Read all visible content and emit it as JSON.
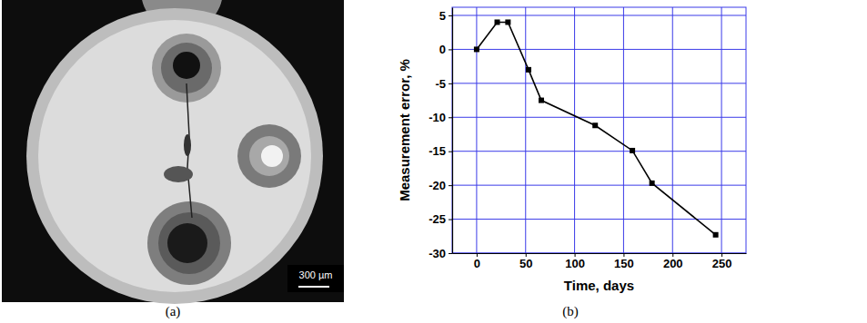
{
  "chart_data": {
    "type": "line",
    "x_label": "Time, days",
    "y_label": "Measurement error, %",
    "x": [
      0,
      21,
      32,
      53,
      66,
      121,
      159,
      179,
      244
    ],
    "values": [
      0,
      4,
      4,
      -3,
      -7.5,
      -11.2,
      -14.9,
      -19.7,
      -27.3
    ],
    "color": "#000000",
    "marker": "square",
    "line_style": "solid",
    "xlim": [
      -25,
      275
    ],
    "xticks": [
      0,
      50,
      100,
      150,
      200,
      250
    ],
    "ylim": [
      -30,
      6.2
    ],
    "yticks": [
      -30,
      -25,
      -20,
      -15,
      -10,
      -5,
      0,
      5
    ],
    "grid": true
  },
  "image": {
    "scale_bar_label": "300 µm"
  },
  "captions": [
    "(a)",
    "(b)"
  ]
}
